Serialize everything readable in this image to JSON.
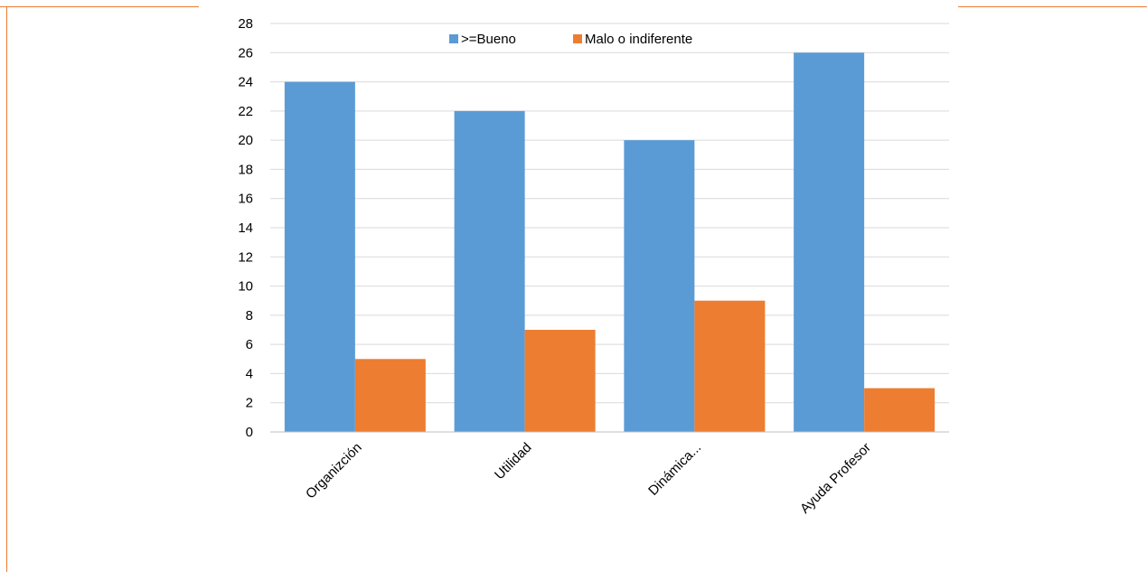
{
  "chart_data": {
    "type": "bar",
    "categories": [
      "Organizción",
      "Utilidad",
      "Dinámica...",
      "Ayuda Profesor"
    ],
    "series": [
      {
        "name": ">=Bueno",
        "values": [
          24,
          22,
          20,
          26
        ],
        "color": "#5B9BD5"
      },
      {
        "name": "Malo o indiferente",
        "values": [
          5,
          7,
          9,
          3
        ],
        "color": "#ED7D31"
      }
    ],
    "ylim": [
      0,
      28
    ],
    "yticks": [
      0,
      2,
      4,
      6,
      8,
      10,
      12,
      14,
      16,
      18,
      20,
      22,
      24,
      26,
      28
    ],
    "grid": true,
    "legend_position": "top-center",
    "gridline_color": "#D9D9D9",
    "frame_color": "#ED7D31"
  }
}
